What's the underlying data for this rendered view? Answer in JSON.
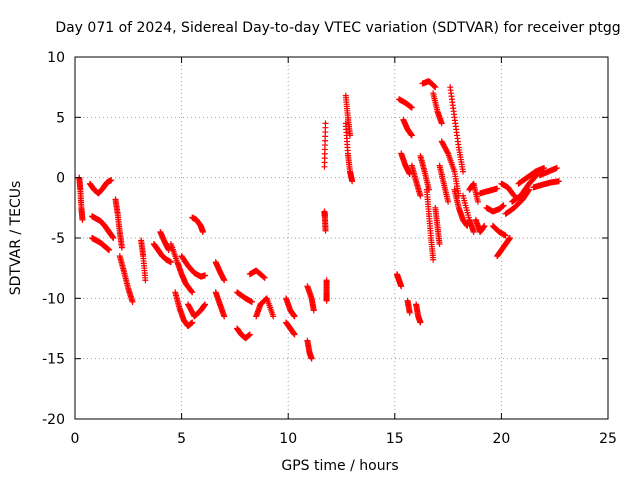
{
  "chart_data": {
    "type": "scatter",
    "title": "Day 071 of 2024, Sidereal Day-to-day VTEC variation (SDTVAR) for receiver ptgg",
    "xlabel": "GPS time / hours",
    "ylabel": "SDTVAR / TECUs",
    "xlim": [
      0,
      25
    ],
    "ylim": [
      -20,
      10
    ],
    "xticks": [
      0,
      5,
      10,
      15,
      20,
      25
    ],
    "yticks": [
      -20,
      -15,
      -10,
      -5,
      0,
      5,
      10
    ],
    "grid": true,
    "marker": "+",
    "marker_color": "#ff0000",
    "tracks": [
      {
        "x": [
          0.2,
          0.25,
          0.3,
          0.35
        ],
        "y": [
          0.0,
          -1.0,
          -2.5,
          -3.5
        ]
      },
      {
        "x": [
          0.7,
          0.9,
          1.1,
          1.3,
          1.5,
          1.7
        ],
        "y": [
          -0.5,
          -1.0,
          -1.3,
          -0.9,
          -0.4,
          -0.2
        ]
      },
      {
        "x": [
          0.8,
          1.0,
          1.2,
          1.4,
          1.6,
          1.8
        ],
        "y": [
          -3.2,
          -3.4,
          -3.6,
          -4.0,
          -4.5,
          -5.0
        ]
      },
      {
        "x": [
          0.8,
          1.0,
          1.2,
          1.4,
          1.6
        ],
        "y": [
          -5.0,
          -5.2,
          -5.4,
          -5.7,
          -6.0
        ]
      },
      {
        "x": [
          1.9,
          2.0,
          2.1,
          2.2
        ],
        "y": [
          -1.8,
          -3.0,
          -4.5,
          -5.8
        ]
      },
      {
        "x": [
          2.1,
          2.3,
          2.5,
          2.7
        ],
        "y": [
          -6.5,
          -7.8,
          -9.2,
          -10.3
        ]
      },
      {
        "x": [
          3.1,
          3.2,
          3.3
        ],
        "y": [
          -5.2,
          -6.5,
          -8.5
        ]
      },
      {
        "x": [
          3.7,
          3.9,
          4.1,
          4.3,
          4.5
        ],
        "y": [
          -5.5,
          -6.0,
          -6.5,
          -6.8,
          -7.0
        ]
      },
      {
        "x": [
          4.0,
          4.2,
          4.4
        ],
        "y": [
          -4.5,
          -5.3,
          -6.0
        ]
      },
      {
        "x": [
          4.5,
          4.8,
          5.0,
          5.2,
          5.5
        ],
        "y": [
          -5.5,
          -7.0,
          -8.0,
          -8.8,
          -9.5
        ]
      },
      {
        "x": [
          4.7,
          4.9,
          5.1,
          5.3,
          5.5
        ],
        "y": [
          -9.5,
          -10.8,
          -11.8,
          -12.3,
          -12.0
        ]
      },
      {
        "x": [
          5.0,
          5.3,
          5.6,
          5.9,
          6.1
        ],
        "y": [
          -6.5,
          -7.3,
          -7.9,
          -8.2,
          -8.1
        ]
      },
      {
        "x": [
          5.3,
          5.6,
          5.9,
          6.1
        ],
        "y": [
          -10.5,
          -11.5,
          -11.0,
          -10.5
        ]
      },
      {
        "x": [
          5.5,
          5.7,
          5.9,
          6.0
        ],
        "y": [
          -3.3,
          -3.5,
          -4.0,
          -4.5
        ]
      },
      {
        "x": [
          6.6,
          6.8,
          7.0
        ],
        "y": [
          -7.0,
          -7.8,
          -8.5
        ]
      },
      {
        "x": [
          6.6,
          6.8,
          7.0
        ],
        "y": [
          -9.5,
          -10.5,
          -11.5
        ]
      },
      {
        "x": [
          7.6,
          7.8,
          8.0,
          8.2
        ],
        "y": [
          -12.5,
          -13.0,
          -13.3,
          -13.0
        ]
      },
      {
        "x": [
          7.6,
          8.0,
          8.3
        ],
        "y": [
          -9.5,
          -10.0,
          -10.3
        ]
      },
      {
        "x": [
          8.2,
          8.5,
          8.9
        ],
        "y": [
          -8.0,
          -7.7,
          -8.3
        ]
      },
      {
        "x": [
          8.5,
          8.7,
          9.0,
          9.3
        ],
        "y": [
          -11.5,
          -10.5,
          -10.0,
          -11.5
        ]
      },
      {
        "x": [
          9.9,
          10.1,
          10.3
        ],
        "y": [
          -10.0,
          -11.0,
          -11.5
        ]
      },
      {
        "x": [
          9.9,
          10.1,
          10.3
        ],
        "y": [
          -12.0,
          -12.5,
          -13.0
        ]
      },
      {
        "x": [
          10.9,
          11.0,
          11.1
        ],
        "y": [
          -13.5,
          -14.5,
          -15.0
        ]
      },
      {
        "x": [
          10.9,
          11.1,
          11.2
        ],
        "y": [
          -9.0,
          -10.0,
          -11.0
        ]
      },
      {
        "x": [
          11.7,
          11.75
        ],
        "y": [
          0.9,
          4.5
        ]
      },
      {
        "x": [
          11.7,
          11.72,
          11.75
        ],
        "y": [
          -2.8,
          -3.2,
          -4.4
        ]
      },
      {
        "x": [
          11.8,
          11.8,
          11.8
        ],
        "y": [
          -8.5,
          -9.5,
          -10.2
        ]
      },
      {
        "x": [
          12.7,
          12.8,
          12.9
        ],
        "y": [
          6.8,
          5.0,
          3.5
        ]
      },
      {
        "x": [
          12.7,
          12.8,
          12.9,
          13.0
        ],
        "y": [
          4.5,
          2.0,
          0.5,
          -0.3
        ]
      },
      {
        "x": [
          15.1,
          15.2,
          15.3
        ],
        "y": [
          -8.0,
          -8.5,
          -9.0
        ]
      },
      {
        "x": [
          15.2,
          15.5,
          15.8
        ],
        "y": [
          6.5,
          6.2,
          5.8
        ]
      },
      {
        "x": [
          15.3,
          15.5,
          15.7
        ],
        "y": [
          2.0,
          1.0,
          0.3
        ]
      },
      {
        "x": [
          15.4,
          15.6,
          15.8
        ],
        "y": [
          4.8,
          4.0,
          3.5
        ]
      },
      {
        "x": [
          15.6,
          15.7
        ],
        "y": [
          -10.2,
          -11.2
        ]
      },
      {
        "x": [
          15.8,
          16.0,
          16.2
        ],
        "y": [
          1.0,
          -0.3,
          -1.5
        ]
      },
      {
        "x": [
          16.0,
          16.1,
          16.2
        ],
        "y": [
          -10.5,
          -11.5,
          -12.0
        ]
      },
      {
        "x": [
          16.2,
          16.4,
          16.6
        ],
        "y": [
          1.8,
          0.5,
          -1.0
        ]
      },
      {
        "x": [
          16.3,
          16.6,
          16.9
        ],
        "y": [
          7.8,
          8.0,
          7.5
        ]
      },
      {
        "x": [
          16.5,
          16.6,
          16.7,
          16.8
        ],
        "y": [
          -1.0,
          -3.0,
          -5.0,
          -6.8
        ]
      },
      {
        "x": [
          16.8,
          17.0,
          17.2
        ],
        "y": [
          7.0,
          5.5,
          4.5
        ]
      },
      {
        "x": [
          16.9,
          17.0,
          17.1
        ],
        "y": [
          -2.5,
          -4.0,
          -5.5
        ]
      },
      {
        "x": [
          17.1,
          17.3,
          17.5
        ],
        "y": [
          1.0,
          -0.5,
          -2.0
        ]
      },
      {
        "x": [
          17.2,
          17.5,
          17.8,
          18.0
        ],
        "y": [
          3.0,
          2.0,
          0.5,
          -1.5
        ]
      },
      {
        "x": [
          17.6,
          17.8,
          18.0,
          18.2
        ],
        "y": [
          7.5,
          5.0,
          2.5,
          0.5
        ]
      },
      {
        "x": [
          17.8,
          18.0,
          18.2,
          18.4
        ],
        "y": [
          -1.0,
          -2.5,
          -3.5,
          -4.0
        ]
      },
      {
        "x": [
          18.2,
          18.5,
          18.7
        ],
        "y": [
          -1.5,
          -3.5,
          -4.5
        ]
      },
      {
        "x": [
          18.5,
          18.7,
          18.9
        ],
        "y": [
          -1.0,
          -0.5,
          -2.0
        ]
      },
      {
        "x": [
          18.8,
          19.0,
          19.2
        ],
        "y": [
          -3.5,
          -4.5,
          -4.0
        ]
      },
      {
        "x": [
          19.0,
          19.4,
          19.8
        ],
        "y": [
          -1.3,
          -1.1,
          -0.9
        ]
      },
      {
        "x": [
          19.3,
          19.6,
          19.9,
          20.1
        ],
        "y": [
          -2.5,
          -2.8,
          -2.6,
          -2.3
        ]
      },
      {
        "x": [
          19.6,
          19.9,
          20.2
        ],
        "y": [
          -4.0,
          -4.5,
          -4.8
        ]
      },
      {
        "x": [
          19.8,
          20.0,
          20.2,
          20.4
        ],
        "y": [
          -6.5,
          -6.0,
          -5.5,
          -5.0
        ]
      },
      {
        "x": [
          20.0,
          20.3,
          20.6
        ],
        "y": [
          -0.5,
          -0.8,
          -1.5
        ]
      },
      {
        "x": [
          20.2,
          20.6,
          21.0,
          21.3
        ],
        "y": [
          -3.0,
          -2.5,
          -1.8,
          -1.0
        ]
      },
      {
        "x": [
          20.5,
          20.9,
          21.3,
          21.7
        ],
        "y": [
          -2.0,
          -1.5,
          -0.5,
          0.3
        ]
      },
      {
        "x": [
          20.8,
          21.2,
          21.6,
          22.0
        ],
        "y": [
          -0.5,
          0.0,
          0.5,
          0.8
        ]
      },
      {
        "x": [
          21.5,
          21.9,
          22.3,
          22.7
        ],
        "y": [
          -0.8,
          -0.6,
          -0.4,
          -0.3
        ]
      },
      {
        "x": [
          21.8,
          22.2,
          22.6
        ],
        "y": [
          0.2,
          0.5,
          0.8
        ]
      }
    ]
  }
}
